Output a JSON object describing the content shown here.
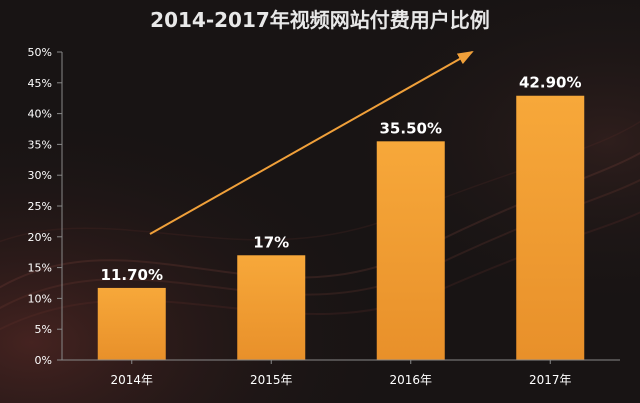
{
  "chart_data": {
    "type": "bar",
    "title": "2014-2017年视频网站付费用户比例",
    "categories": [
      "2014年",
      "2015年",
      "2016年",
      "2017年"
    ],
    "values": [
      11.7,
      17,
      35.5,
      42.9
    ],
    "value_labels": [
      "11.70%",
      "17%",
      "35.50%",
      "42.90%"
    ],
    "ylim": [
      0,
      50
    ],
    "y_ticks": [
      0,
      5,
      10,
      15,
      20,
      25,
      30,
      35,
      40,
      45,
      50
    ],
    "y_tick_labels": [
      "0%",
      "5%",
      "10%",
      "15%",
      "20%",
      "25%",
      "30%",
      "35%",
      "40%",
      "45%",
      "50%"
    ],
    "xlabel": "",
    "ylabel": "",
    "grid": false,
    "annotations": [
      "trend-arrow"
    ]
  },
  "colors": {
    "background": "#181414",
    "bar_top": "#f7a83a",
    "bar_bottom": "#e8902a",
    "arrow": "#f0a03a",
    "text": "#ffffff",
    "axis": "#888888"
  }
}
